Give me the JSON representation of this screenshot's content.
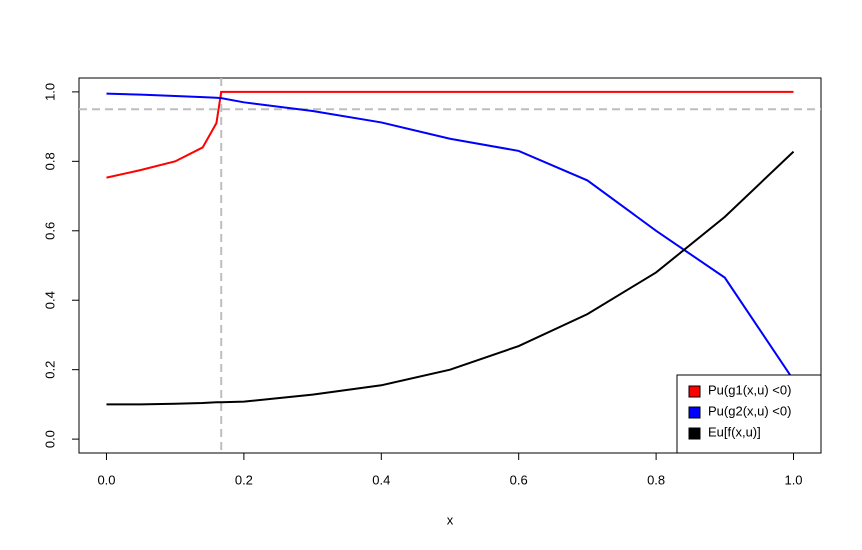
{
  "chart_data": {
    "type": "line",
    "x": [
      0,
      0.05,
      0.1,
      0.14,
      0.16,
      0.167,
      0.2,
      0.3,
      0.4,
      0.5,
      0.6,
      0.7,
      0.8,
      0.9,
      1.0
    ],
    "series": [
      {
        "name": "Pu(g1(x,u) <0)",
        "color": "#ff0000",
        "values": [
          0.753,
          0.775,
          0.8,
          0.84,
          0.91,
          1.0,
          1.0,
          1.0,
          1.0,
          1.0,
          1.0,
          1.0,
          1.0,
          1.0,
          1.0
        ]
      },
      {
        "name": "Pu(g2(x,u) <0)",
        "color": "#0000ff",
        "values": [
          0.995,
          0.992,
          0.988,
          0.985,
          0.983,
          0.982,
          0.97,
          0.945,
          0.912,
          0.865,
          0.83,
          0.745,
          0.6,
          0.465,
          0.17
        ]
      },
      {
        "name": "Eu[f(x,u)]",
        "color": "#000000",
        "values": [
          0.1,
          0.1,
          0.102,
          0.104,
          0.106,
          0.106,
          0.108,
          0.128,
          0.155,
          0.2,
          0.268,
          0.36,
          0.48,
          0.64,
          0.828
        ]
      }
    ],
    "x_label": "x",
    "xlim": [
      -0.04,
      1.04
    ],
    "ylim": [
      -0.04,
      1.04
    ],
    "xticks": [
      {
        "value": 0,
        "label": "0.0"
      },
      0.2,
      0.4,
      0.6,
      0.8,
      {
        "value": 1,
        "label": "1.0"
      }
    ],
    "yticks": [
      {
        "value": 0,
        "label": "0.0"
      },
      0.2,
      0.4,
      0.6,
      0.8,
      {
        "value": 1,
        "label": "1.0"
      }
    ],
    "reference_lines": {
      "y": 0.95,
      "x": 0.167,
      "color": "#bebebe"
    },
    "legend": "bottom-right"
  }
}
